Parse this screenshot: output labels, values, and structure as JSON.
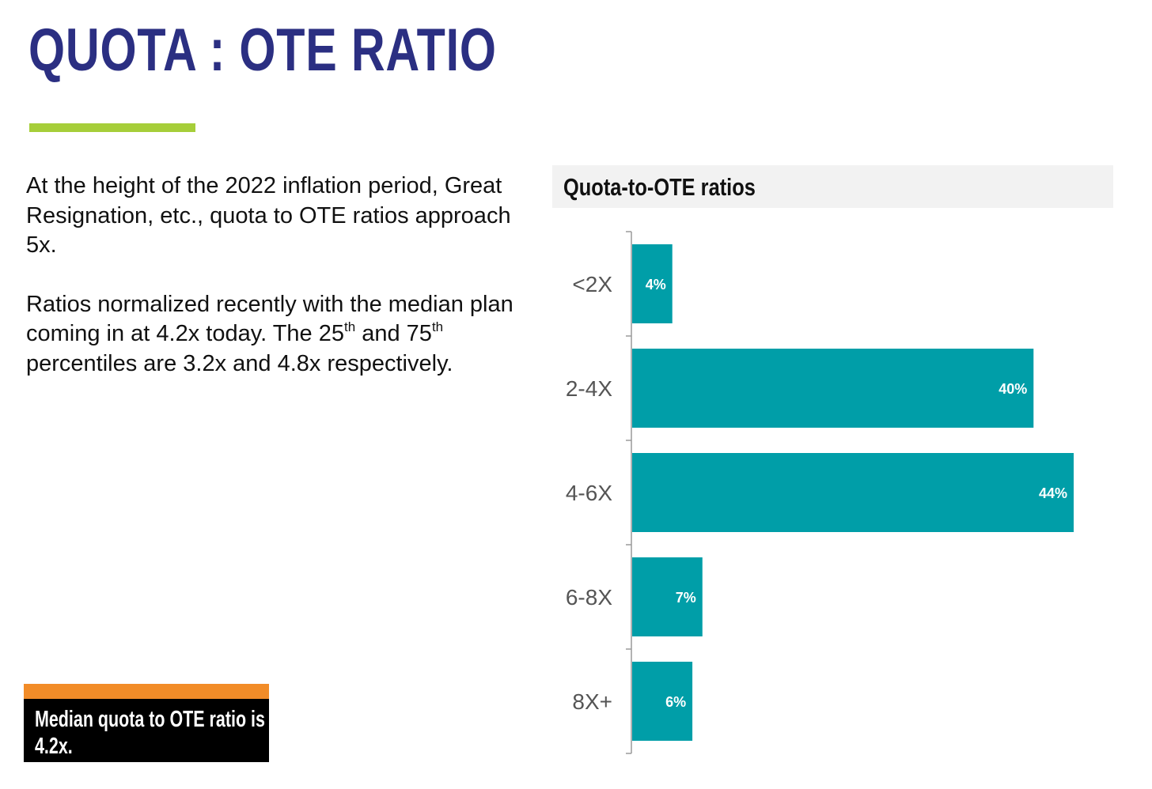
{
  "slide": {
    "title": "QUOTA : OTE RATIO",
    "paragraph1": "At the height of the 2022 inflation period, Great Resignation, etc., quota to OTE ratios approach 5x.",
    "paragraph2_line1": "Ratios normalized recently with the median plan coming in at  4.2x today.",
    "p2_the": "The 25",
    "p2_sup1": "th",
    "p2_and": " and 75",
    "p2_sup2": "th",
    "p2_rest": " percentiles are 3.2x and 4.8x respectively.",
    "callout": "Median quota to OTE ratio is 4.2x."
  },
  "colors": {
    "title": "#2b2f82",
    "underline": "#a6ce39",
    "callout_band": "#f28c28",
    "callout_bg": "#000000",
    "bar": "#009ea8"
  },
  "chart_data": {
    "type": "bar",
    "orientation": "horizontal",
    "title": "Quota-to-OTE ratios",
    "categories": [
      "<2X",
      "2-4X",
      "4-6X",
      "6-8X",
      "8X+"
    ],
    "values": [
      4,
      40,
      44,
      7,
      6
    ],
    "value_labels": [
      "4%",
      "40%",
      "44%",
      "7%",
      "6%"
    ],
    "unit": "%",
    "xlim": [
      0,
      44
    ],
    "grid": false,
    "legend": "none"
  }
}
